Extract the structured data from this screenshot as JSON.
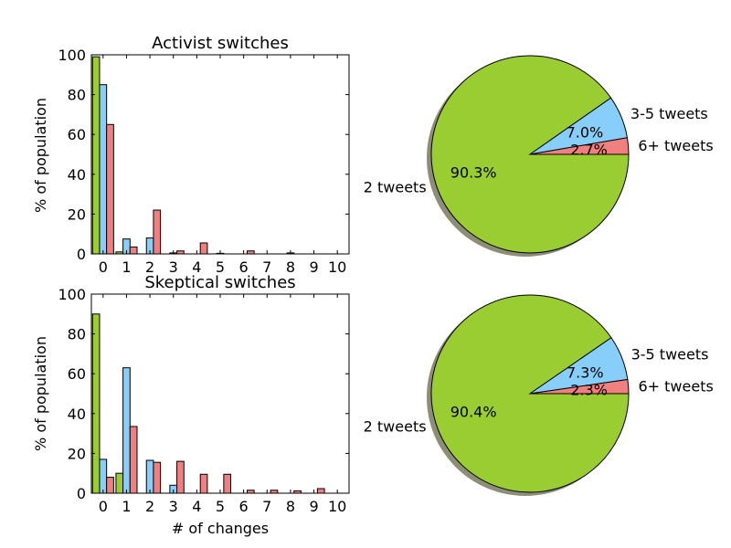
{
  "chart_data": [
    {
      "type": "bar",
      "title": "Activist switches",
      "xlabel": "",
      "ylabel": "% of population",
      "xlim": [
        -0.5,
        10.5
      ],
      "ylim": [
        0,
        100
      ],
      "xticks": [
        "0",
        "1",
        "2",
        "3",
        "4",
        "5",
        "6",
        "7",
        "8",
        "9",
        "10"
      ],
      "yticks": [
        "0",
        "20",
        "40",
        "60",
        "80",
        "100"
      ],
      "grid": false,
      "series": [
        {
          "color": "#9acd32",
          "values": [
            99,
            1,
            0,
            0,
            0,
            0,
            0,
            0,
            0,
            0,
            0
          ]
        },
        {
          "color": "#87cefa",
          "values": [
            85,
            7.5,
            8,
            0.5,
            0,
            0.3,
            0,
            0,
            0.5,
            0,
            0
          ]
        },
        {
          "color": "#f08080",
          "values": [
            65,
            3.5,
            22,
            1.5,
            5.5,
            0,
            1.5,
            0,
            0,
            0,
            0
          ]
        }
      ]
    },
    {
      "type": "bar",
      "title": "Skeptical switches",
      "xlabel": "# of changes",
      "ylabel": "% of population",
      "xlim": [
        -0.5,
        10.5
      ],
      "ylim": [
        0,
        100
      ],
      "xticks": [
        "0",
        "1",
        "2",
        "3",
        "4",
        "5",
        "6",
        "7",
        "8",
        "9",
        "10"
      ],
      "yticks": [
        "0",
        "20",
        "40",
        "60",
        "80",
        "100"
      ],
      "grid": false,
      "series": [
        {
          "color": "#9acd32",
          "values": [
            90,
            10,
            0,
            0,
            0,
            0,
            0,
            0,
            0,
            0,
            0
          ]
        },
        {
          "color": "#87cefa",
          "values": [
            17,
            63,
            16.5,
            4,
            0,
            0,
            0,
            0,
            0,
            0,
            0
          ]
        },
        {
          "color": "#f08080",
          "values": [
            8,
            33.5,
            15.5,
            16,
            9.5,
            9.5,
            1.5,
            1.5,
            1.2,
            2.3,
            0
          ]
        }
      ]
    },
    {
      "type": "pie",
      "title": "",
      "shadow": true,
      "slices": [
        {
          "label": "2 tweets",
          "value": 90.3,
          "pct_label": "90.3%",
          "color": "#9acd32"
        },
        {
          "label": "3-5 tweets",
          "value": 7.0,
          "pct_label": "7.0%",
          "color": "#87cefa"
        },
        {
          "label": "6+ tweets",
          "value": 2.7,
          "pct_label": "2.7%",
          "color": "#f08080"
        }
      ]
    },
    {
      "type": "pie",
      "title": "",
      "shadow": true,
      "slices": [
        {
          "label": "2 tweets",
          "value": 90.4,
          "pct_label": "90.4%",
          "color": "#9acd32"
        },
        {
          "label": "3-5 tweets",
          "value": 7.3,
          "pct_label": "7.3%",
          "color": "#87cefa"
        },
        {
          "label": "6+ tweets",
          "value": 2.3,
          "pct_label": "2.3%",
          "color": "#f08080"
        }
      ]
    }
  ]
}
